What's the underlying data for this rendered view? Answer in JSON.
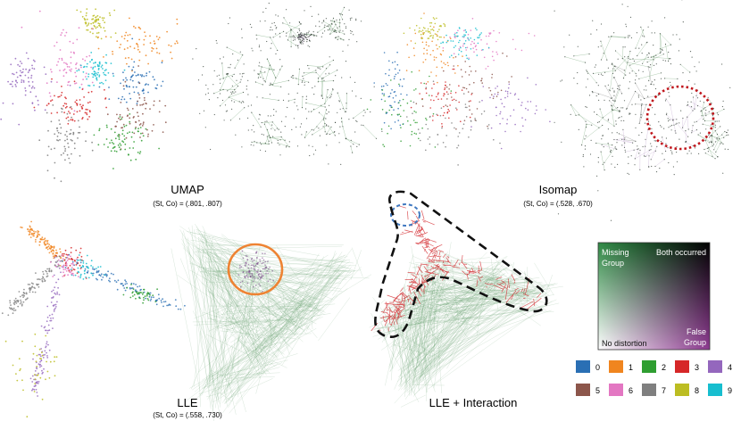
{
  "colors": {
    "class": [
      "#2a6fb4",
      "#f0851f",
      "#2f9e31",
      "#d62728",
      "#9467bd",
      "#8c564b",
      "#e377c2",
      "#7f7f7f",
      "#bcbd22",
      "#17becf"
    ],
    "mesh_green": "#4f8f55",
    "mesh_purple": "#b08bc0",
    "highlight_red": "#c0161c",
    "highlight_orange": "#ee8333",
    "highlight_blue": "#3f78c0",
    "outline_black": "#111111"
  },
  "panels": {
    "umap": {
      "title": "UMAP",
      "subtitle": "(St, Co) = (.801, .807)"
    },
    "isomap": {
      "title": "Isomap",
      "subtitle": "(St, Co) = (.528, .670)"
    },
    "lle": {
      "title": "LLE",
      "subtitle": "(St, Co) = (.558, .730)"
    },
    "lle_interaction": {
      "title": "LLE + Interaction"
    }
  },
  "colormap_legend": {
    "top_left": [
      "Missing",
      "Group"
    ],
    "top_right": "Both occurred",
    "bottom_left": "No distortion",
    "bottom_right": [
      "False",
      "Group"
    ],
    "colors": {
      "missing": "#2f8a45",
      "false": "#8c3a8f",
      "both": "#000000",
      "none": "#ffffff"
    }
  },
  "class_legend": {
    "items": [
      {
        "label": "0"
      },
      {
        "label": "1"
      },
      {
        "label": "2"
      },
      {
        "label": "3"
      },
      {
        "label": "4"
      },
      {
        "label": "5"
      },
      {
        "label": "6"
      },
      {
        "label": "7"
      },
      {
        "label": "8"
      },
      {
        "label": "9"
      }
    ]
  }
}
